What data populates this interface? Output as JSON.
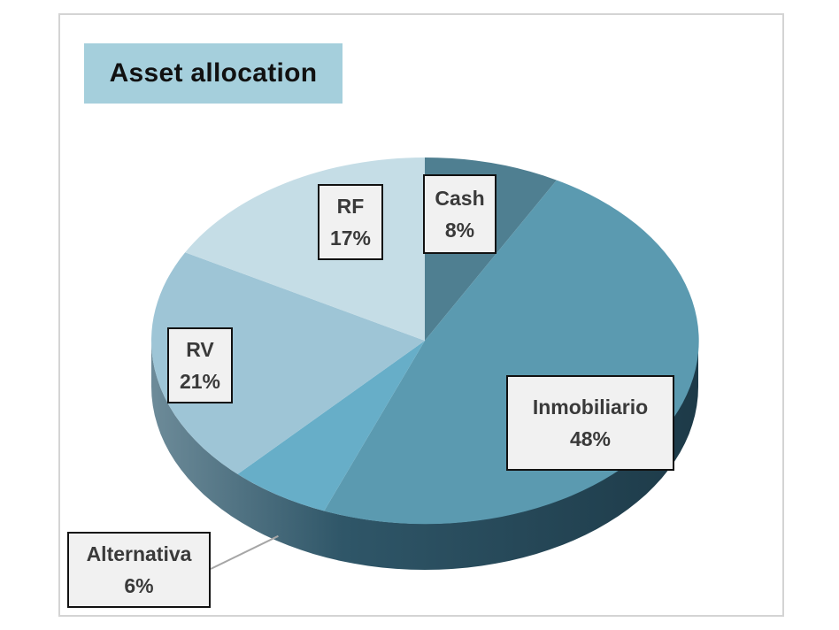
{
  "chart_data": {
    "type": "pie",
    "title": "Asset allocation",
    "slices": [
      {
        "name": "Cash",
        "value": 8,
        "label": "8%",
        "color": "#4f7f91"
      },
      {
        "name": "Inmobiliario",
        "value": 48,
        "label": "48%",
        "color": "#5b9ab0"
      },
      {
        "name": "Alternativa",
        "value": 6,
        "label": "6%",
        "color": "#67aec8"
      },
      {
        "name": "RV",
        "value": 21,
        "label": "21%",
        "color": "#9ec5d6"
      },
      {
        "name": "RF",
        "value": 17,
        "label": "17%",
        "color": "#c5dde6"
      }
    ],
    "style": "3d",
    "legend": "none"
  }
}
